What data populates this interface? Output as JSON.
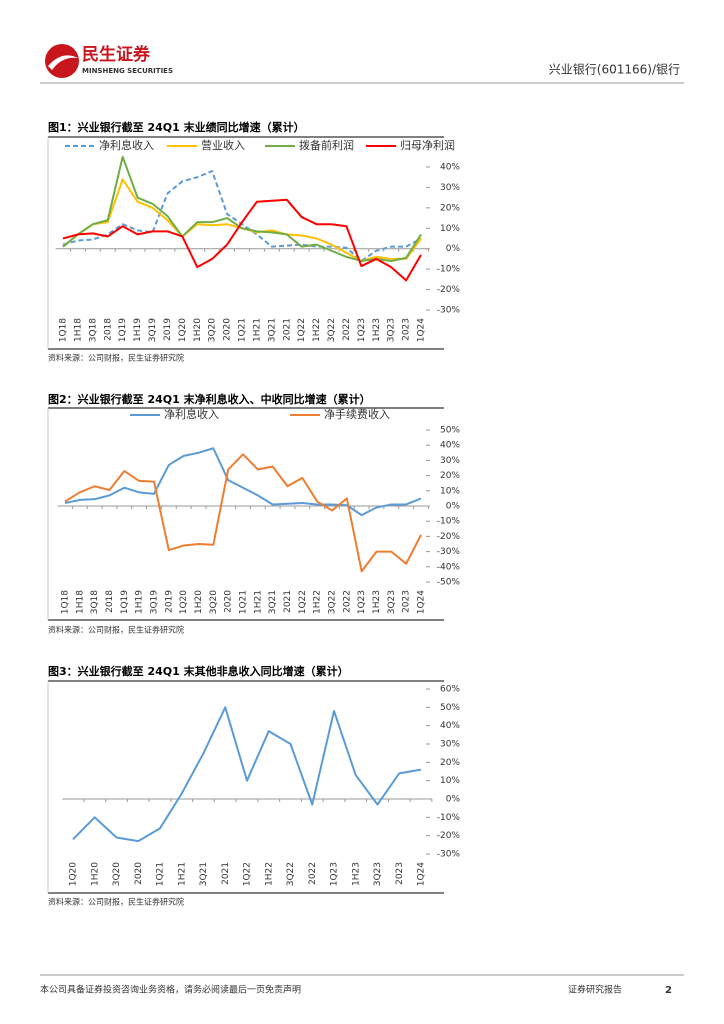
{
  "header": {
    "logo_cn": "民生证券",
    "logo_en": "MINSHENG SECURITIES",
    "right": "兴业银行(601166)/银行"
  },
  "footer": {
    "disclaimer": "本公司具备证券投资咨询业务资格，请务必阅读最后一页免责声明",
    "label": "证券研究报告",
    "page": 2
  },
  "chart_data": [
    {
      "type": "line",
      "title": "图1：兴业银行截至 24Q1 末业绩同比增速（累计）",
      "categories": [
        "1Q18",
        "1H18",
        "3Q18",
        "2018",
        "1Q19",
        "1H19",
        "3Q19",
        "2019",
        "1Q20",
        "1H20",
        "3Q20",
        "2020",
        "1Q21",
        "1H21",
        "3Q21",
        "2021",
        "1Q22",
        "1H22",
        "3Q22",
        "2022",
        "1Q23",
        "1H23",
        "3Q23",
        "2023",
        "1Q24"
      ],
      "series": [
        {
          "name": "净利息收入",
          "color": "#5b9bd5",
          "dashed": true,
          "values": [
            2,
            4,
            4.5,
            7,
            12,
            9,
            8,
            27,
            33,
            35,
            38,
            17,
            12,
            7,
            1,
            1.5,
            2,
            1,
            1,
            0.5,
            -6,
            -1,
            1,
            1,
            5
          ]
        },
        {
          "name": "营业收入",
          "color": "#ffc000",
          "values": [
            1,
            7,
            12,
            13,
            34,
            23,
            20,
            14,
            6,
            12,
            11.5,
            12,
            10,
            8,
            9,
            7,
            6.5,
            5,
            2,
            -2,
            -6,
            -4,
            -5,
            -5,
            5
          ]
        },
        {
          "name": "拨备前利润",
          "color": "#70ad47",
          "values": [
            1,
            7,
            12,
            14,
            45,
            25,
            22,
            16,
            6,
            13,
            13,
            15,
            10,
            8.5,
            8,
            7,
            1,
            2,
            -1,
            -4,
            -6,
            -5,
            -6,
            -4.5,
            7
          ]
        },
        {
          "name": "归母净利润",
          "color": "#ff0000",
          "values": [
            5,
            7,
            7.5,
            6,
            11,
            7,
            8.5,
            8.5,
            6,
            -9,
            -5,
            2,
            13,
            23,
            23.5,
            24,
            15.5,
            12,
            12,
            11,
            -8.5,
            -5,
            -9,
            -15.5,
            -3
          ]
        }
      ],
      "ylim": [
        -30,
        40
      ],
      "yticks": [
        {
          "value": -30,
          "label": "-30%"
        },
        {
          "value": -20,
          "label": "-20%"
        },
        {
          "value": -10,
          "label": "-10%"
        },
        {
          "value": 0,
          "label": "0%"
        },
        {
          "value": 10,
          "label": "10%"
        },
        {
          "value": 20,
          "label": "20%"
        },
        {
          "value": 30,
          "label": "30%"
        },
        {
          "value": 40,
          "label": "40%"
        }
      ],
      "source": "资料来源：公司财报，民生证券研究院"
    },
    {
      "type": "line",
      "title": "图2：兴业银行截至 24Q1 末净利息收入、中收同比增速（累计）",
      "categories": [
        "1Q18",
        "1H18",
        "3Q18",
        "2018",
        "1Q19",
        "1H19",
        "3Q19",
        "2019",
        "1Q20",
        "1H20",
        "3Q20",
        "2020",
        "1Q21",
        "1H21",
        "3Q21",
        "2021",
        "1Q22",
        "1H22",
        "3Q22",
        "2022",
        "1Q23",
        "1H23",
        "3Q23",
        "2023",
        "1Q24"
      ],
      "series": [
        {
          "name": "净利息收入",
          "color": "#5b9bd5",
          "values": [
            2,
            4,
            4.5,
            7,
            12,
            9,
            8,
            27,
            33,
            35,
            38,
            17,
            12,
            7,
            1,
            1.5,
            2,
            1,
            1,
            0.5,
            -6,
            -1,
            1,
            1,
            5
          ]
        },
        {
          "name": "净手续费收入",
          "color": "#ed7d31",
          "values": [
            3,
            9,
            13,
            10.5,
            23,
            16.5,
            16,
            -29,
            -26,
            -25,
            -25.5,
            24,
            34,
            24,
            26,
            13,
            18.5,
            3,
            -3,
            5,
            -43,
            -30,
            -30,
            -38,
            -19
          ]
        }
      ],
      "ylim": [
        -50,
        50
      ],
      "yticks": [
        {
          "value": -50,
          "label": "-50%"
        },
        {
          "value": -40,
          "label": "-40%"
        },
        {
          "value": -30,
          "label": "-30%"
        },
        {
          "value": -20,
          "label": "-20%"
        },
        {
          "value": -10,
          "label": "-10%"
        },
        {
          "value": 0,
          "label": "0%"
        },
        {
          "value": 10,
          "label": "10%"
        },
        {
          "value": 20,
          "label": "20%"
        },
        {
          "value": 30,
          "label": "30%"
        },
        {
          "value": 40,
          "label": "40%"
        },
        {
          "value": 50,
          "label": "50%"
        }
      ],
      "source": "资料来源：公司财报，民生证券研究院"
    },
    {
      "type": "line",
      "title": "图3：兴业银行截至 24Q1 末其他非息收入同比增速（累计）",
      "categories": [
        "1Q20",
        "1H20",
        "3Q20",
        "2020",
        "1Q21",
        "1H21",
        "3Q21",
        "2021",
        "1Q22",
        "1H22",
        "3Q22",
        "2022",
        "1Q23",
        "1H23",
        "3Q23",
        "2023",
        "1Q24"
      ],
      "series": [
        {
          "color": "#5b9bd5",
          "values": [
            -22,
            -10,
            -21,
            -23,
            -16,
            3,
            25,
            50,
            10,
            37,
            30,
            -3,
            48,
            13,
            -3,
            14,
            16
          ]
        }
      ],
      "ylim": [
        -30,
        60
      ],
      "yticks": [
        {
          "value": -30,
          "label": "-30%"
        },
        {
          "value": -20,
          "label": "-20%"
        },
        {
          "value": -10,
          "label": "-10%"
        },
        {
          "value": 0,
          "label": "0%"
        },
        {
          "value": 10,
          "label": "10%"
        },
        {
          "value": 20,
          "label": "20%"
        },
        {
          "value": 30,
          "label": "30%"
        },
        {
          "value": 40,
          "label": "40%"
        },
        {
          "value": 50,
          "label": "50%"
        },
        {
          "value": 60,
          "label": "60%"
        }
      ],
      "source": "资料来源：公司财报，民生证券研究院"
    }
  ]
}
